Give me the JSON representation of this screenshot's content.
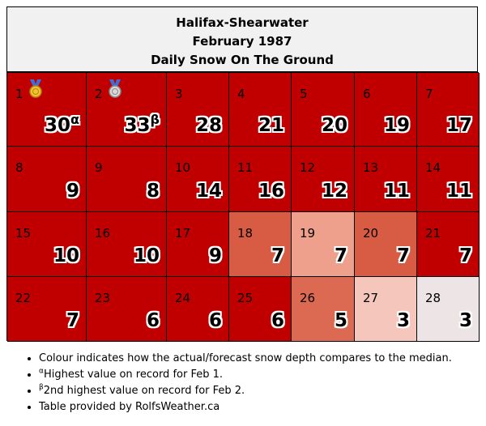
{
  "header": {
    "station": "Halifax-Shearwater",
    "period": "February 1987",
    "subtitle": "Daily Snow On The Ground"
  },
  "chart_data": {
    "type": "table",
    "title": "Halifax-Shearwater",
    "subtitle": "February 1987",
    "metric": "Daily Snow On The Ground",
    "days": [
      {
        "day": "1",
        "value": 30,
        "mark": "α",
        "medal": "gold",
        "color": "#c00000"
      },
      {
        "day": "2",
        "value": 33,
        "mark": "β",
        "medal": "silver",
        "color": "#c00000"
      },
      {
        "day": "3",
        "value": 28,
        "color": "#c00000"
      },
      {
        "day": "4",
        "value": 21,
        "color": "#c00000"
      },
      {
        "day": "5",
        "value": 20,
        "color": "#c00000"
      },
      {
        "day": "6",
        "value": 19,
        "color": "#c00000"
      },
      {
        "day": "7",
        "value": 17,
        "color": "#c00000"
      },
      {
        "day": "8",
        "value": 9,
        "color": "#c00000"
      },
      {
        "day": "9",
        "value": 8,
        "color": "#c00000"
      },
      {
        "day": "10",
        "value": 14,
        "color": "#c00000"
      },
      {
        "day": "11",
        "value": 16,
        "color": "#c00000"
      },
      {
        "day": "12",
        "value": 12,
        "color": "#c00000"
      },
      {
        "day": "13",
        "value": 11,
        "color": "#c00000"
      },
      {
        "day": "14",
        "value": 11,
        "color": "#c00000"
      },
      {
        "day": "15",
        "value": 10,
        "color": "#c00000"
      },
      {
        "day": "16",
        "value": 10,
        "color": "#c00000"
      },
      {
        "day": "17",
        "value": 9,
        "color": "#c00000"
      },
      {
        "day": "18",
        "value": 7,
        "color": "#d85c43"
      },
      {
        "day": "19",
        "value": 7,
        "color": "#eea08c"
      },
      {
        "day": "20",
        "value": 7,
        "color": "#d85c43"
      },
      {
        "day": "21",
        "value": 7,
        "color": "#c00000"
      },
      {
        "day": "22",
        "value": 7,
        "color": "#c00000"
      },
      {
        "day": "23",
        "value": 6,
        "color": "#c00000"
      },
      {
        "day": "24",
        "value": 6,
        "color": "#c00000"
      },
      {
        "day": "25",
        "value": 6,
        "color": "#c00000"
      },
      {
        "day": "26",
        "value": 5,
        "color": "#dc6a52"
      },
      {
        "day": "27",
        "value": 3,
        "color": "#f4c6bc"
      },
      {
        "day": "28",
        "value": 3,
        "color": "#ede4e6"
      }
    ]
  },
  "notes": {
    "colour": "Colour indicates how the actual/forecast snow depth compares to the median.",
    "alpha_mark": "α",
    "alpha_text": "Highest value on record for Feb 1.",
    "beta_mark": "β",
    "beta_text": "2nd highest value on record for Feb 2.",
    "credit": "Table provided by RolfsWeather.ca"
  }
}
